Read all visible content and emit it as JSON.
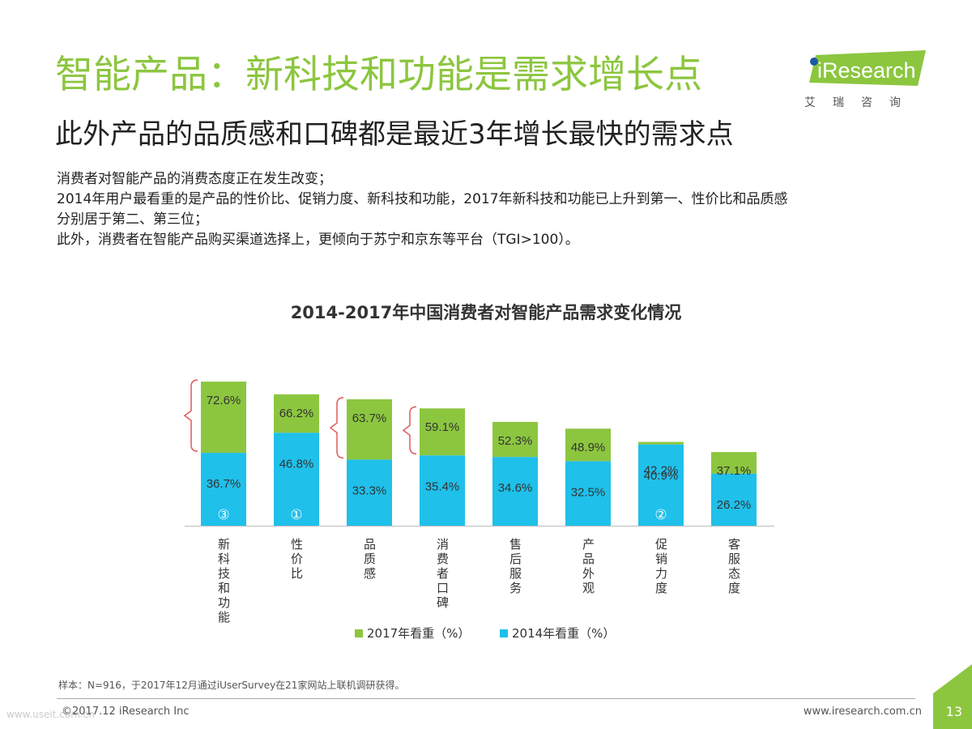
{
  "header": {
    "title": "智能产品：新科技和功能是需求增长点",
    "subtitle": "此外产品的品质感和口碑都是最近3年增长最快的需求点"
  },
  "logo": {
    "text": "iResearch",
    "cn": "艾瑞咨询",
    "color": "#8cc63f"
  },
  "intro": [
    "消费者对智能产品的消费态度正在发生改变；",
    "2014年用户最看重的是产品的性价比、促销力度、新科技和功能，2017年新科技和功能已上升到第一、性价比和品质感",
    "分别居于第二、第三位；",
    "此外，消费者在智能产品购买渠道选择上，更倾向于苏宁和京东等平台（TGI>100）。"
  ],
  "chart_data": {
    "type": "bar",
    "title": "2014-2017年中国消费者对智能产品需求变化情况",
    "categories": [
      "新科技和功能",
      "性价比",
      "品质感",
      "消费者口碑",
      "售后服务",
      "产品外观",
      "促销力度",
      "客服态度"
    ],
    "series": [
      {
        "name": "2017年看重（%）",
        "values": [
          72.6,
          66.2,
          63.7,
          59.1,
          52.3,
          48.9,
          42.2,
          37.1
        ],
        "color": "#8cc63f"
      },
      {
        "name": "2014年看重（%）",
        "values": [
          36.7,
          46.8,
          33.3,
          35.4,
          34.6,
          32.5,
          40.9,
          26.2
        ],
        "color": "#1fc0ea"
      }
    ],
    "rank_markers": [
      "③",
      "①",
      "",
      "",
      "",
      "",
      "②",
      ""
    ],
    "bracketed_categories": [
      0,
      2,
      3
    ],
    "legend_position": "bottom",
    "grid": false,
    "ylim": [
      0,
      80
    ]
  },
  "footer": {
    "source": "样本：N=916，于2017年12月通过iUserSurvey在21家网站上联机调研获得。",
    "copyright": "©2017.12 iResearch Inc",
    "url": "www.iresearch.com.cn",
    "page": "13",
    "accent": "#8cc63f"
  }
}
